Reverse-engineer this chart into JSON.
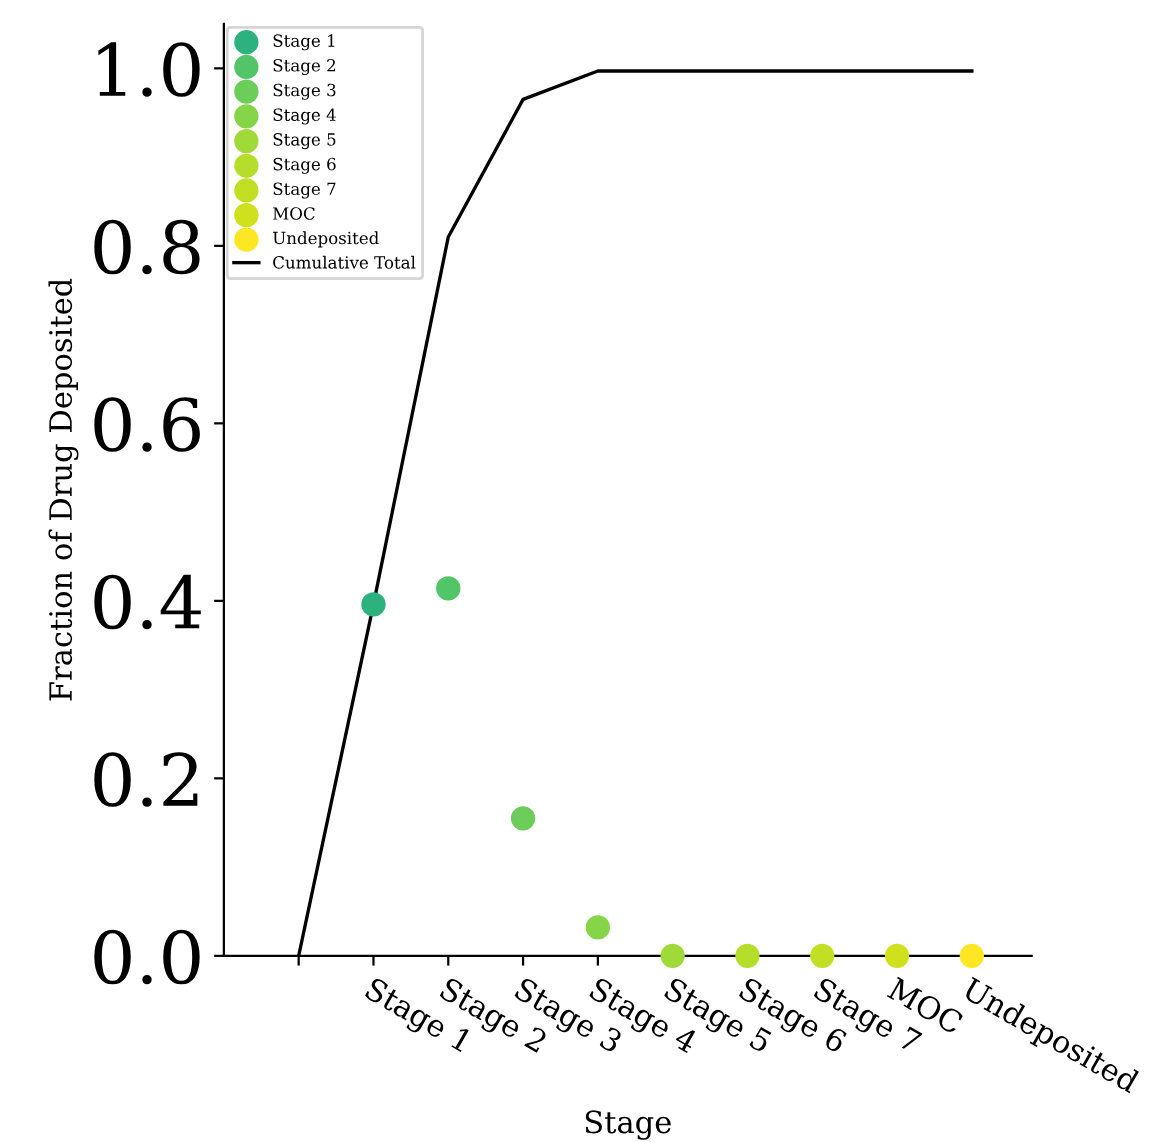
{
  "chart_data": {
    "type": "scatter",
    "xlabel": "Stage",
    "ylabel": "Fraction of Drug Deposited",
    "categories": [
      null,
      "Stage 1",
      "Stage 2",
      "Stage 3",
      "Stage 4",
      "Stage 5",
      "Stage 6",
      "Stage 7",
      "MOC",
      "Undeposited"
    ],
    "series": [
      {
        "name": "Stage 1",
        "color": "#2db27d",
        "values": [
          null,
          0.396,
          null,
          null,
          null,
          null,
          null,
          null,
          null,
          null
        ]
      },
      {
        "name": "Stage 2",
        "color": "#52c569",
        "values": [
          null,
          null,
          0.414,
          null,
          null,
          null,
          null,
          null,
          null,
          null
        ]
      },
      {
        "name": "Stage 3",
        "color": "#6ccd5a",
        "values": [
          null,
          null,
          null,
          0.155,
          null,
          null,
          null,
          null,
          null,
          null
        ]
      },
      {
        "name": "Stage 4",
        "color": "#86d549",
        "values": [
          null,
          null,
          null,
          null,
          0.032,
          null,
          null,
          null,
          null,
          null
        ]
      },
      {
        "name": "Stage 5",
        "color": "#a0da39",
        "values": [
          null,
          null,
          null,
          null,
          null,
          0,
          null,
          null,
          null,
          null
        ]
      },
      {
        "name": "Stage 6",
        "color": "#b5de2b",
        "values": [
          null,
          null,
          null,
          null,
          null,
          null,
          0,
          null,
          null,
          null
        ]
      },
      {
        "name": "Stage 7",
        "color": "#c2df23",
        "values": [
          null,
          null,
          null,
          null,
          null,
          null,
          null,
          0,
          null,
          null
        ]
      },
      {
        "name": "MOC",
        "color": "#cfe11c",
        "values": [
          null,
          null,
          null,
          null,
          null,
          null,
          null,
          null,
          0,
          null
        ]
      },
      {
        "name": "Undeposited",
        "color": "#fde725",
        "values": [
          null,
          null,
          null,
          null,
          null,
          null,
          null,
          null,
          null,
          0
        ]
      },
      {
        "name": "Cumulative Total",
        "type": "line",
        "marker": "none",
        "color": "#000000",
        "values": [
          0,
          0.396,
          0.81,
          0.965,
          0.997,
          0.997,
          0.997,
          0.997,
          0.997,
          0.997
        ]
      }
    ],
    "ylim": [
      0,
      1.05
    ],
    "yticks": [
      {
        "value": 0,
        "label": "0.0"
      },
      {
        "value": 0.2,
        "label": "0.2"
      },
      {
        "value": 0.4,
        "label": "0.4"
      },
      {
        "value": 0.6,
        "label": "0.6"
      },
      {
        "value": 0.8,
        "label": "0.8"
      },
      {
        "value": 1.0,
        "label": "1.0"
      }
    ],
    "grid": false,
    "legend": "top left",
    "marker": "circle"
  }
}
